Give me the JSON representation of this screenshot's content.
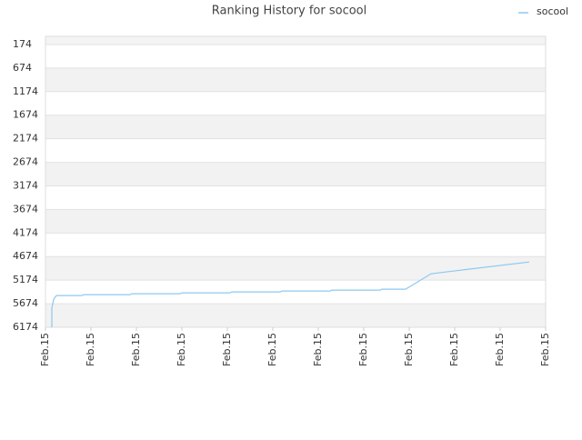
{
  "chart_data": {
    "type": "line",
    "title": "Ranking History for socool",
    "x": [
      0.14,
      0.14,
      0.18,
      0.24,
      0.8,
      0.84,
      1.86,
      1.9,
      2.96,
      3.0,
      4.06,
      4.1,
      5.16,
      5.2,
      6.26,
      6.3,
      7.36,
      7.4,
      7.92,
      8.48,
      8.8,
      10.64
    ],
    "series": [
      {
        "name": "socool",
        "color": "#8ec8f0",
        "values": [
          6174,
          5770,
          5578,
          5501,
          5501,
          5482,
          5482,
          5463,
          5463,
          5443,
          5443,
          5424,
          5424,
          5405,
          5405,
          5386,
          5386,
          5366,
          5366,
          5039,
          5001,
          4789
        ]
      }
    ],
    "xlim": [
      0,
      11
    ],
    "xticks": [
      {
        "value": 0,
        "label": "Feb.15"
      },
      {
        "value": 1,
        "label": "Feb.15"
      },
      {
        "value": 2,
        "label": "Feb.15"
      },
      {
        "value": 3,
        "label": "Feb.15"
      },
      {
        "value": 4,
        "label": "Feb.15"
      },
      {
        "value": 5,
        "label": "Feb.15"
      },
      {
        "value": 6,
        "label": "Feb.15"
      },
      {
        "value": 7,
        "label": "Feb.15"
      },
      {
        "value": 8,
        "label": "Feb.15"
      },
      {
        "value": 9,
        "label": "Feb.15"
      },
      {
        "value": 10,
        "label": "Feb.15"
      },
      {
        "value": 11,
        "label": "Feb.15"
      }
    ],
    "ylim": [
      6174,
      1
    ],
    "yticks": [
      174,
      674,
      1174,
      1674,
      2174,
      2674,
      3174,
      3674,
      4174,
      4674,
      5174,
      5674,
      6174
    ],
    "grid": "bands",
    "legend": "top-right"
  }
}
